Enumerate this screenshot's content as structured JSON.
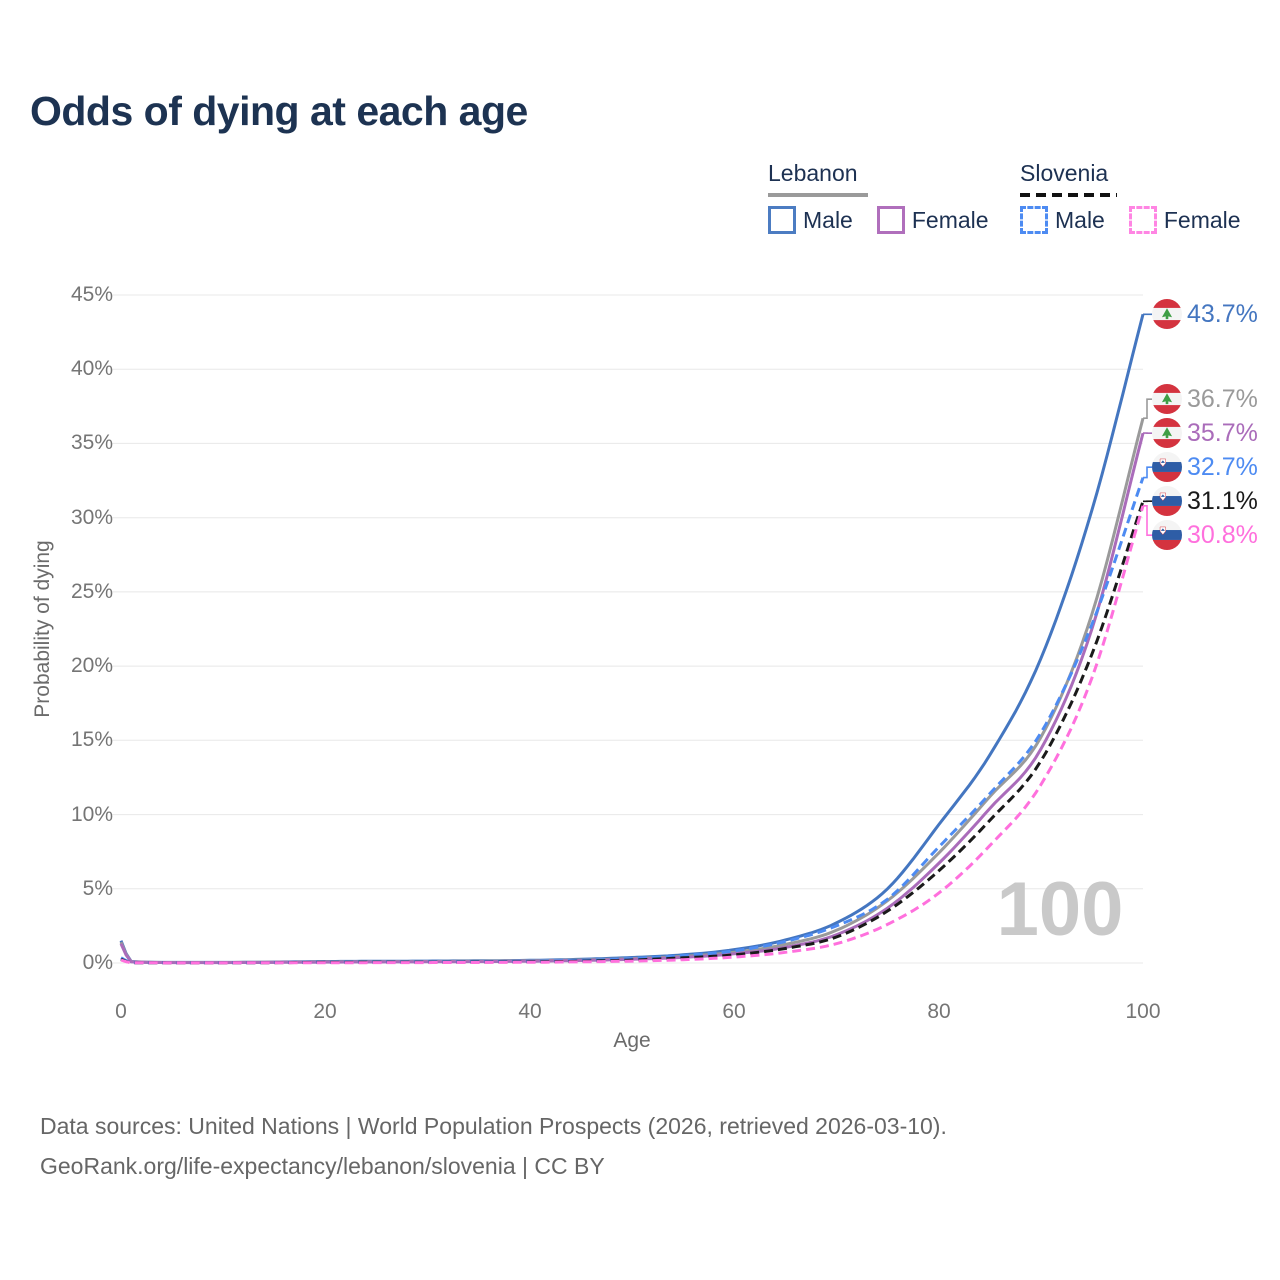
{
  "header": {
    "title": "Odds of dying at each age"
  },
  "legend": {
    "lebanon": {
      "label": "Lebanon",
      "male_label": "Male",
      "female_label": "Female"
    },
    "slovenia": {
      "label": "Slovenia",
      "male_label": "Male",
      "female_label": "Female"
    }
  },
  "axes": {
    "y": {
      "title": "Probability of dying",
      "ticks": [
        "45%",
        "40%",
        "35%",
        "30%",
        "25%",
        "20%",
        "15%",
        "10%",
        "5%",
        "0%"
      ]
    },
    "x": {
      "title": "Age",
      "ticks": [
        "0",
        "20",
        "40",
        "60",
        "80",
        "100"
      ]
    }
  },
  "watermark": "100",
  "footer": {
    "line1": "Data sources: United Nations | World Population Prospects (2026, retrieved 2026-03-10).",
    "line2": "GeoRank.org/life-expectancy/lebanon/slovenia | CC BY"
  },
  "chart_data": {
    "type": "line",
    "title": "Odds of dying at each age",
    "xlabel": "Age",
    "ylabel": "Probability of dying",
    "xlim": [
      0,
      100
    ],
    "ylim": [
      0,
      45
    ],
    "grid": "horizontal",
    "legend_position": "top-right",
    "ytick_values": [
      45,
      40,
      35,
      30,
      25,
      20,
      15,
      10,
      5,
      0
    ],
    "xtick_values": [
      0,
      20,
      40,
      60,
      80,
      100
    ],
    "x_ages": [
      0,
      1,
      5,
      10,
      20,
      30,
      40,
      45,
      50,
      55,
      60,
      65,
      70,
      75,
      80,
      85,
      90,
      95,
      100
    ],
    "series": [
      {
        "name": "Lebanon Male",
        "country": "Lebanon",
        "sex": "Male",
        "flag": "lebanon",
        "color": "#4476c0",
        "dash": false,
        "end_label": "43.7%",
        "end_value_pct": 43.7,
        "values": [
          1.5,
          0.1,
          0.04,
          0.04,
          0.1,
          0.13,
          0.18,
          0.25,
          0.37,
          0.55,
          0.9,
          1.55,
          2.7,
          5.0,
          9.3,
          14.0,
          20.5,
          30.5,
          43.7
        ]
      },
      {
        "name": "Lebanon Both sexes",
        "country": "Lebanon",
        "sex": "Both",
        "flag": "lebanon",
        "color": "#9a9a9a",
        "dash": false,
        "end_label": "36.7%",
        "end_value_pct": 36.7,
        "values": [
          1.4,
          0.09,
          0.035,
          0.035,
          0.08,
          0.1,
          0.15,
          0.2,
          0.3,
          0.45,
          0.72,
          1.25,
          2.2,
          4.2,
          7.4,
          11.2,
          15.2,
          23.5,
          36.7
        ]
      },
      {
        "name": "Lebanon Female",
        "country": "Lebanon",
        "sex": "Female",
        "flag": "lebanon",
        "color": "#aa6cba",
        "dash": false,
        "end_label": "35.7%",
        "end_value_pct": 35.7,
        "values": [
          1.3,
          0.08,
          0.03,
          0.03,
          0.06,
          0.08,
          0.12,
          0.17,
          0.25,
          0.38,
          0.62,
          1.05,
          1.9,
          3.7,
          6.7,
          10.4,
          14.4,
          22.5,
          35.7
        ]
      },
      {
        "name": "Slovenia Male",
        "country": "Slovenia",
        "sex": "Male",
        "flag": "slovenia",
        "color": "#4d8bf2",
        "dash": true,
        "end_label": "32.7%",
        "end_value_pct": 32.7,
        "values": [
          0.35,
          0.03,
          0.01,
          0.01,
          0.06,
          0.08,
          0.12,
          0.18,
          0.3,
          0.5,
          0.82,
          1.45,
          2.5,
          4.3,
          7.8,
          11.4,
          15.5,
          22.8,
          32.7
        ]
      },
      {
        "name": "Slovenia Both sexes",
        "country": "Slovenia",
        "sex": "Both",
        "flag": "slovenia",
        "color": "#1a1a1a",
        "dash": true,
        "end_label": "31.1%",
        "end_value_pct": 31.1,
        "values": [
          0.25,
          0.02,
          0.01,
          0.01,
          0.04,
          0.05,
          0.08,
          0.12,
          0.2,
          0.35,
          0.55,
          0.98,
          1.75,
          3.5,
          6.2,
          9.6,
          13.6,
          20.8,
          31.1
        ]
      },
      {
        "name": "Slovenia Female",
        "country": "Slovenia",
        "sex": "Female",
        "flag": "slovenia",
        "color": "#ff70dd",
        "dash": true,
        "end_label": "30.8%",
        "end_value_pct": 30.8,
        "values": [
          0.2,
          0.02,
          0.01,
          0.01,
          0.02,
          0.03,
          0.05,
          0.08,
          0.13,
          0.22,
          0.4,
          0.72,
          1.3,
          2.6,
          4.7,
          7.9,
          12.0,
          19.2,
          30.8
        ]
      }
    ]
  }
}
